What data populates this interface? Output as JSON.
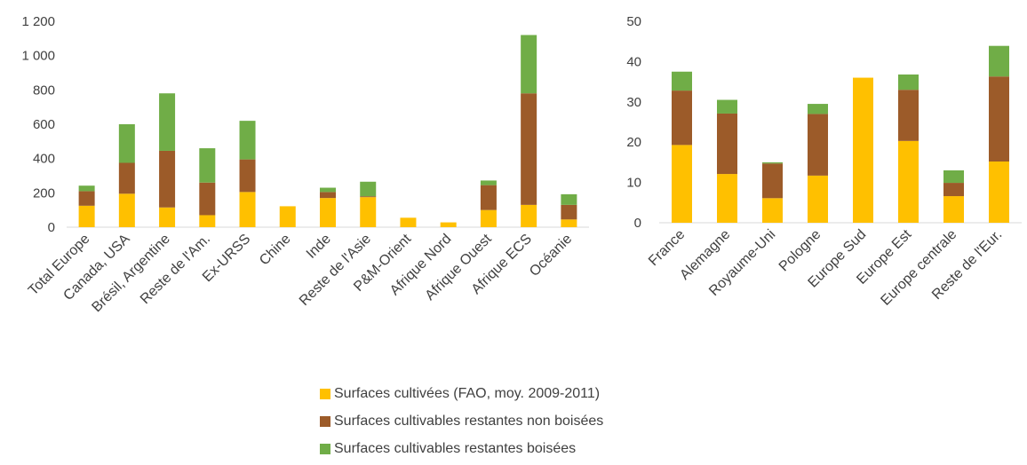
{
  "colors": {
    "cultivees": "#FFC000",
    "non_boisees": "#9C5B29",
    "boisees": "#70AD47",
    "axis": "#D9D9D9",
    "text": "#404040"
  },
  "legend": [
    {
      "label": "Surfaces cultivées (FAO, moy. 2009-2011)",
      "color": "#FFC000"
    },
    {
      "label": "Surfaces cultivables restantes non boisées",
      "color": "#9C5B29"
    },
    {
      "label": "Surfaces cultivables restantes boisées",
      "color": "#70AD47"
    }
  ],
  "chart_data": [
    {
      "type": "bar",
      "stacked": true,
      "grid": false,
      "ylim": [
        0,
        1200
      ],
      "yticks": [
        "0",
        "200",
        "400",
        "600",
        "800",
        "1 000",
        "1 200"
      ],
      "categories": [
        "Total Europe",
        "Canada, USA",
        "Brésil, Argentine",
        "Reste de l'Am.",
        "Ex-URSS",
        "Chine",
        "Inde",
        "Reste de l'Asie",
        "P&M-Orient",
        "Afrique Nord",
        "Afrique Ouest",
        "Afrique ECS",
        "Océanie"
      ],
      "series": [
        {
          "key": "cultivees",
          "values": [
            125,
            195,
            115,
            70,
            205,
            122,
            170,
            175,
            55,
            28,
            100,
            130,
            45
          ]
        },
        {
          "key": "non_boisees",
          "values": [
            85,
            180,
            330,
            190,
            190,
            0,
            35,
            5,
            0,
            0,
            145,
            650,
            85
          ]
        },
        {
          "key": "boisees",
          "values": [
            32,
            225,
            335,
            200,
            225,
            0,
            25,
            85,
            0,
            0,
            27,
            340,
            62
          ]
        }
      ]
    },
    {
      "type": "bar",
      "stacked": true,
      "grid": false,
      "ylim": [
        0,
        50
      ],
      "yticks": [
        "0",
        "10",
        "20",
        "30",
        "40",
        "50"
      ],
      "categories": [
        "France",
        "Alemagne",
        "Royaume-Uni",
        "Pologne",
        "Europe Sud",
        "Europe Est",
        "Europe centrale",
        "Reste de l'Eur."
      ],
      "series": [
        {
          "key": "cultivees",
          "values": [
            19.3,
            12.1,
            6.1,
            11.7,
            36,
            20.3,
            6.6,
            15.2
          ]
        },
        {
          "key": "non_boisees",
          "values": [
            13.5,
            15,
            8.6,
            15.3,
            0,
            12.7,
            3.3,
            21.1
          ]
        },
        {
          "key": "boisees",
          "values": [
            4.7,
            3.4,
            0.3,
            2.5,
            0,
            3.8,
            3.1,
            7.6
          ]
        }
      ]
    }
  ]
}
